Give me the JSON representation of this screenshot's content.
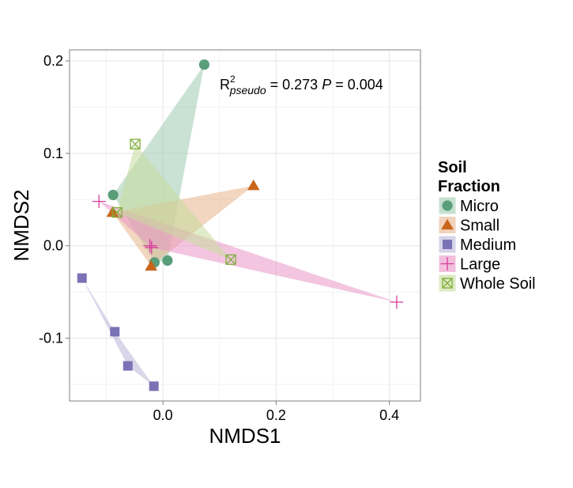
{
  "chart_data": {
    "type": "scatter",
    "title": "",
    "xlabel": "NMDS1",
    "ylabel": "NMDS2",
    "xlim": [
      -0.165,
      0.455
    ],
    "ylim": [
      -0.168,
      0.212
    ],
    "xticks": [
      0.0,
      0.2,
      0.4
    ],
    "xtick_labels": [
      "0.0",
      "0.2",
      "0.4"
    ],
    "yticks": [
      -0.1,
      0.0,
      0.1,
      0.2
    ],
    "ytick_labels": [
      "-0.1",
      "0.0",
      "0.1",
      "0.2"
    ],
    "grid": true,
    "legend": {
      "title_line1": "Soil",
      "title_line2": "Fraction",
      "placement": "right"
    },
    "annotation": {
      "r_base": "R",
      "r_sup": "2",
      "r_sub": "pseudo",
      "r_eq": " = 0.273 ",
      "p_label": "P",
      "p_eq": " = 0.004"
    },
    "series": [
      {
        "name": "Micro",
        "marker": "circle",
        "color": "#5a9e79",
        "fill": "#9fcbb0",
        "points": [
          [
            -0.088,
            0.055
          ],
          [
            0.073,
            0.196
          ],
          [
            -0.015,
            -0.018
          ],
          [
            0.008,
            -0.016
          ]
        ],
        "hull": [
          [
            -0.088,
            0.055
          ],
          [
            0.073,
            0.196
          ],
          [
            0.008,
            -0.016
          ],
          [
            -0.015,
            -0.018
          ]
        ]
      },
      {
        "name": "Small",
        "marker": "triangle",
        "color": "#c9651c",
        "fill": "#e8b48c",
        "points": [
          [
            -0.089,
            0.036
          ],
          [
            0.16,
            0.065
          ],
          [
            -0.021,
            -0.022
          ]
        ],
        "hull": [
          [
            -0.089,
            0.036
          ],
          [
            0.16,
            0.065
          ],
          [
            -0.021,
            -0.022
          ]
        ]
      },
      {
        "name": "Medium",
        "marker": "square",
        "color": "#7a72b4",
        "fill": "#b9b5d9",
        "points": [
          [
            -0.143,
            -0.035
          ],
          [
            -0.085,
            -0.093
          ],
          [
            -0.062,
            -0.13
          ],
          [
            -0.016,
            -0.152
          ]
        ],
        "hull": [
          [
            -0.143,
            -0.035
          ],
          [
            -0.085,
            -0.093
          ],
          [
            -0.016,
            -0.152
          ],
          [
            -0.062,
            -0.13
          ]
        ]
      },
      {
        "name": "Large",
        "marker": "plus",
        "color": "#d63c9a",
        "fill": "#ea95c6",
        "points": [
          [
            -0.113,
            0.048
          ],
          [
            -0.023,
            0.0
          ],
          [
            0.413,
            -0.061
          ],
          [
            -0.02,
            -0.002
          ]
        ],
        "hull": [
          [
            -0.113,
            0.048
          ],
          [
            0.413,
            -0.061
          ],
          [
            -0.02,
            -0.002
          ]
        ]
      },
      {
        "name": "Whole Soil",
        "marker": "boxx",
        "color": "#7fae3a",
        "fill": "#c6dc9c",
        "points": [
          [
            -0.049,
            0.11
          ],
          [
            -0.081,
            0.036
          ],
          [
            0.12,
            -0.015
          ]
        ],
        "hull": [
          [
            -0.049,
            0.11
          ],
          [
            0.12,
            -0.015
          ],
          [
            -0.081,
            0.036
          ]
        ]
      }
    ]
  }
}
